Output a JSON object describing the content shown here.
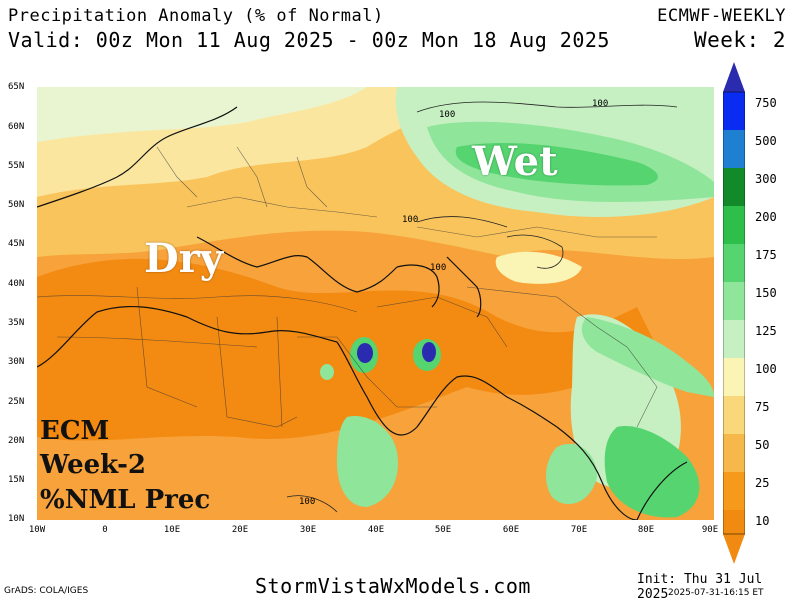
{
  "header": {
    "title": "Precipitation Anomaly (% of Normal)",
    "valid": "Valid: 00z Mon 11 Aug 2025 - 00z Mon 18 Aug 2025",
    "model": "ECMWF-WEEKLY",
    "week_label": "Week:",
    "week_number": "2"
  },
  "map": {
    "lat_labels": [
      "65N",
      "60N",
      "55N",
      "50N",
      "45N",
      "40N",
      "35N",
      "30N",
      "25N",
      "20N",
      "15N",
      "10N"
    ],
    "lon_labels": [
      "10W",
      "0",
      "10E",
      "20E",
      "30E",
      "40E",
      "50E",
      "60E",
      "70E",
      "80E",
      "90E"
    ],
    "annotations": {
      "wet": "Wet",
      "dry": "Dry"
    },
    "overlay_text": [
      "ECM",
      "Week-2",
      "%NML Prec"
    ],
    "contour_labels": [
      "100",
      "100",
      "100",
      "100",
      "100"
    ]
  },
  "colorbar": {
    "labels": [
      "750",
      "500",
      "300",
      "200",
      "175",
      "150",
      "125",
      "100",
      "75",
      "50",
      "25",
      "10"
    ],
    "colors": [
      "#2b2bb0",
      "#0a2cf0",
      "#1f7fd0",
      "#138a2a",
      "#2ebf4a",
      "#55d470",
      "#8fe59a",
      "#c6f0c2",
      "#fbf5b5",
      "#f8d87a",
      "#f7b84b",
      "#f59a1b",
      "#f08a10"
    ]
  },
  "footer": {
    "credit": "GrADS: COLA/IGES",
    "site": "StormVistaWxModels.com",
    "init": "Init: Thu 31 Jul 2025",
    "timestamp": "2025-07-31-16:15 ET"
  }
}
